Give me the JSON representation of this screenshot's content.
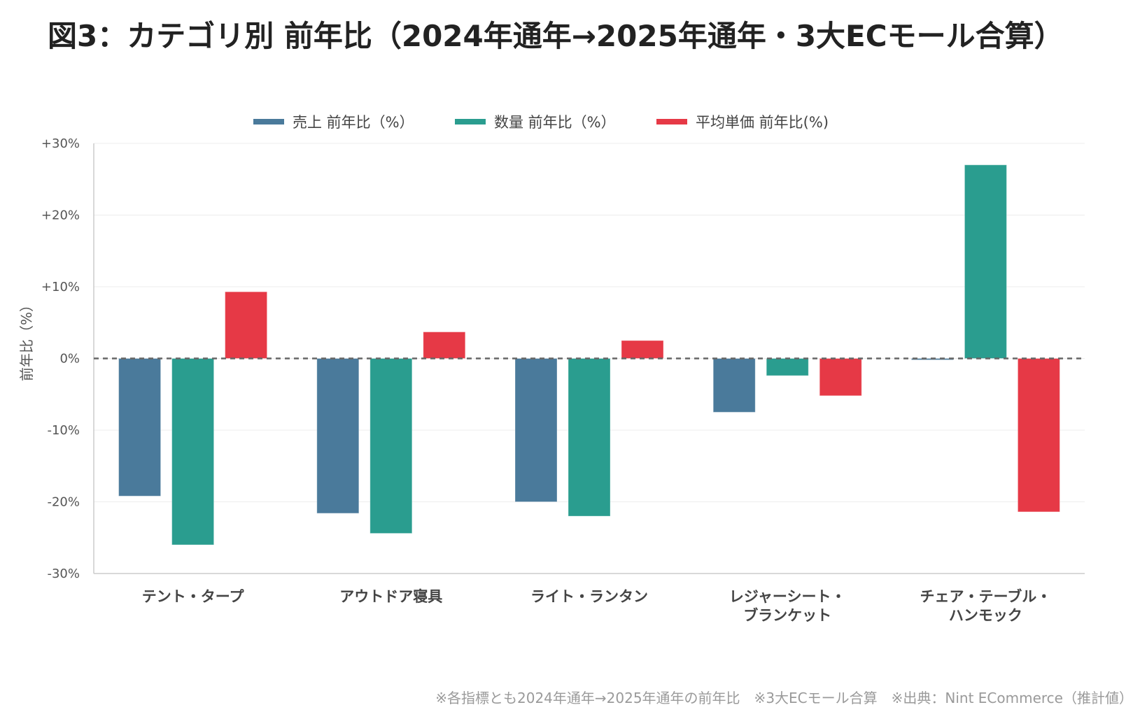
{
  "title": "図3：カテゴリ別 前年比（2024年通年→2025年通年・3大ECモール合算）",
  "footnote": "※各指標とも2024年通年→2025年通年の前年比　※3大ECモール合算　※出典：Nint ECommerce（推計値）",
  "chart_data": {
    "type": "bar",
    "categories": [
      [
        "テント・タープ"
      ],
      [
        "アウトドア寝具"
      ],
      [
        "ライト・ランタン"
      ],
      [
        "レジャーシート・",
        "ブランケット"
      ],
      [
        "チェア・テーブル・",
        "ハンモック"
      ]
    ],
    "series": [
      {
        "name": "売上 前年比（%）",
        "color": "#4a7a9b",
        "values": [
          -19.2,
          -21.6,
          -20.0,
          -7.5,
          -0.2
        ]
      },
      {
        "name": "数量 前年比（%）",
        "color": "#2a9d8f",
        "values": [
          -26.0,
          -24.4,
          -22.0,
          -2.4,
          27.0
        ]
      },
      {
        "name": "平均単価 前年比(%)",
        "color": "#e63946",
        "values": [
          9.3,
          3.7,
          2.5,
          -5.2,
          -21.4
        ]
      }
    ],
    "ylabel": "前年比（%）",
    "ylim": [
      -30,
      30
    ],
    "yticks": [
      30,
      20,
      10,
      0,
      -10,
      -20,
      -30
    ],
    "ytick_labels": [
      "+30%",
      "+20%",
      "+10%",
      "0%",
      "-10%",
      "-20%",
      "-30%"
    ],
    "legend_position": "top",
    "grid": true,
    "zero_line": "dashed"
  }
}
